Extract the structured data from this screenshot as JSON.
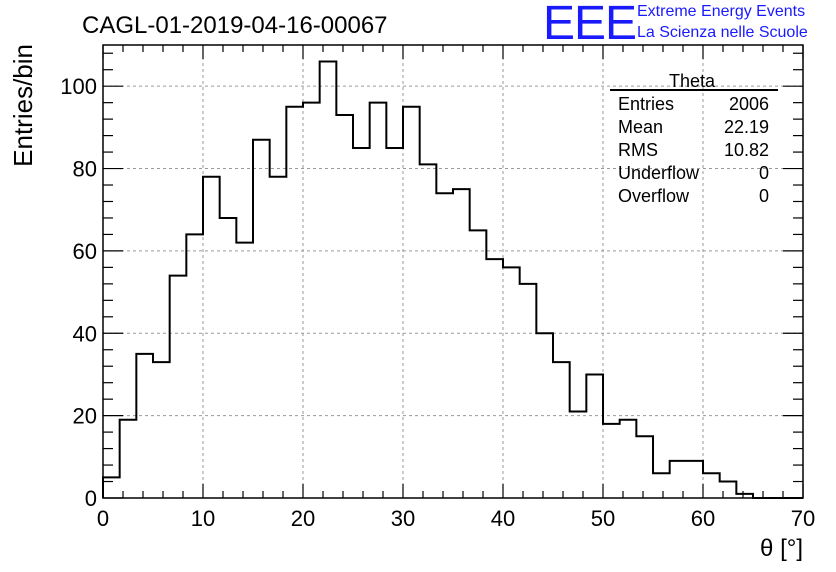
{
  "chart_data": {
    "type": "histogram",
    "title": "CAGL-01-2019-04-16-00067",
    "xlabel": "θ [°]",
    "ylabel": "Entries/bin",
    "xlim": [
      0,
      70
    ],
    "ylim": [
      0,
      110
    ],
    "xticks": [
      0,
      10,
      20,
      30,
      40,
      50,
      60,
      70
    ],
    "yticks": [
      0,
      20,
      40,
      60,
      80,
      100
    ],
    "grid": true,
    "bin_width": 1.6667,
    "bin_start": 0,
    "values": [
      5,
      19,
      35,
      33,
      54,
      64,
      78,
      68,
      62,
      87,
      78,
      95,
      96,
      106,
      93,
      85,
      96,
      85,
      95,
      81,
      74,
      75,
      65,
      58,
      56,
      52,
      40,
      33,
      21,
      30,
      18,
      19,
      15,
      6,
      9,
      9,
      6,
      4,
      1,
      0,
      0,
      0
    ],
    "stats_box": {
      "title": "Theta",
      "rows": [
        {
          "label": "Entries",
          "value": "2006"
        },
        {
          "label": "Mean",
          "value": "22.19"
        },
        {
          "label": "RMS",
          "value": "10.82"
        },
        {
          "label": "Underflow",
          "value": "0"
        },
        {
          "label": "Overflow",
          "value": "0"
        }
      ]
    }
  },
  "branding": {
    "logo": "EEE",
    "line1": "Extreme Energy Events",
    "line2": "La Scienza nelle Scuole",
    "color": "#1a1aff"
  }
}
